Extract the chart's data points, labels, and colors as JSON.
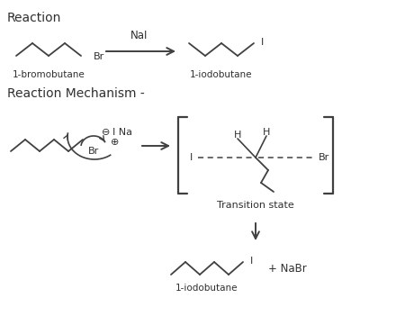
{
  "title": "Reaction",
  "mechanism_title": "Reaction Mechanism -",
  "background_color": "#ffffff",
  "line_color": "#404040",
  "text_color": "#303030",
  "label1": "1-bromobutane",
  "label2": "1-iodobutane",
  "nai_label": "NaI",
  "ts_label": "Transition state",
  "nabr_label": "NaBr",
  "bottom_label": "1-iodobutane"
}
